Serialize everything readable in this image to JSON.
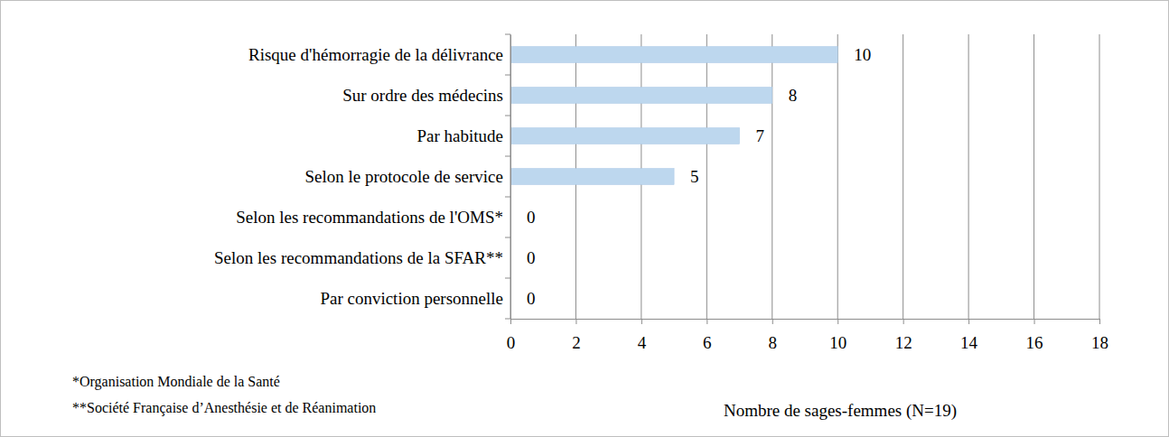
{
  "chart_data": {
    "type": "bar",
    "orientation": "horizontal",
    "categories": [
      "Risque d'hémorragie de la délivrance",
      "Sur ordre des médecins",
      "Par habitude",
      "Selon le protocole de service",
      "Selon les recommandations de l'OMS*",
      "Selon les recommandations de la SFAR**",
      "Par conviction personnelle"
    ],
    "values": [
      10,
      8,
      7,
      5,
      0,
      0,
      0
    ],
    "color": "#bdd7ee",
    "x_label": "Nombre de sages-femmes (N=19)",
    "annotations": [
      "*Organisation Mondiale de la Santé",
      "**Société Française d’Anesthésie et de Réanimation"
    ],
    "xlim": [
      0,
      18
    ],
    "xticks": [
      0,
      2,
      4,
      6,
      8,
      10,
      12,
      14,
      16,
      18
    ],
    "grid": true,
    "data_labels": true
  }
}
